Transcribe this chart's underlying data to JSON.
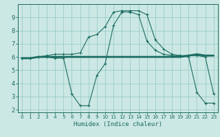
{
  "xlabel": "Humidex (Indice chaleur)",
  "xlim": [
    -0.5,
    23.5
  ],
  "ylim": [
    1.8,
    10.0
  ],
  "yticks": [
    2,
    3,
    4,
    5,
    6,
    7,
    8,
    9
  ],
  "xticks": [
    0,
    1,
    2,
    3,
    4,
    5,
    6,
    7,
    8,
    9,
    10,
    11,
    12,
    13,
    14,
    15,
    16,
    17,
    18,
    19,
    20,
    21,
    22,
    23
  ],
  "bg_color": "#cce8e4",
  "line_color": "#1a6b60",
  "grid_color": "#99cccc",
  "line1_x": [
    0,
    1,
    2,
    3,
    4,
    5,
    6,
    7,
    8,
    9,
    10,
    11,
    12,
    13,
    14,
    15,
    16,
    17,
    18,
    19,
    20,
    21,
    22,
    23
  ],
  "line1_y": [
    5.9,
    5.9,
    6.0,
    6.0,
    6.0,
    6.0,
    6.0,
    6.0,
    6.0,
    6.0,
    6.0,
    6.0,
    6.0,
    6.0,
    6.0,
    6.0,
    6.0,
    6.0,
    6.0,
    6.0,
    6.1,
    6.2,
    6.1,
    6.1
  ],
  "line2_x": [
    0,
    1,
    2,
    3,
    4,
    5,
    6,
    7,
    8,
    9,
    10,
    11,
    12,
    13,
    14,
    15,
    16,
    17,
    18,
    19,
    20,
    21,
    22,
    23
  ],
  "line2_y": [
    5.9,
    5.9,
    6.0,
    6.0,
    5.9,
    5.9,
    3.2,
    2.3,
    2.3,
    4.6,
    5.5,
    8.4,
    9.4,
    9.4,
    9.2,
    7.2,
    6.5,
    6.2,
    6.1,
    6.1,
    6.0,
    3.3,
    2.5,
    2.5
  ],
  "line3_x": [
    0,
    1,
    2,
    3,
    4,
    5,
    6,
    7,
    8,
    9,
    10,
    11,
    12,
    13,
    14,
    15,
    16,
    17,
    18,
    19,
    20,
    21,
    22,
    23
  ],
  "line3_y": [
    5.9,
    5.9,
    6.0,
    6.1,
    6.2,
    6.2,
    6.2,
    6.3,
    7.5,
    7.7,
    8.3,
    9.4,
    9.5,
    9.5,
    9.5,
    9.2,
    7.3,
    6.6,
    6.2,
    6.1,
    6.1,
    6.1,
    6.0,
    3.2
  ]
}
